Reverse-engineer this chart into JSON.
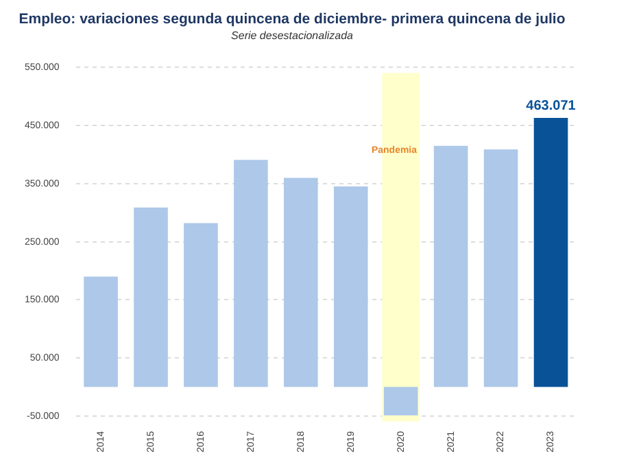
{
  "chart_data": {
    "type": "bar",
    "title": "Empleo: variaciones segunda quincena de diciembre- primera quincena de julio",
    "subtitle": "Serie desestacionalizada",
    "categories": [
      "2014",
      "2015",
      "2016",
      "2017",
      "2018",
      "2019",
      "2020",
      "2021",
      "2022",
      "2023"
    ],
    "values": [
      190000,
      309000,
      282000,
      391000,
      360000,
      345000,
      -49000,
      415000,
      409000,
      463071
    ],
    "colors": [
      "#adc8e8",
      "#adc8e8",
      "#adc8e8",
      "#adc8e8",
      "#adc8e8",
      "#adc8e8",
      "#adc8e8",
      "#adc8e8",
      "#adc8e8",
      "#0a5298"
    ],
    "value_labels": [
      null,
      null,
      null,
      null,
      null,
      null,
      null,
      null,
      null,
      "463.071"
    ],
    "ylim": [
      -50000,
      550000
    ],
    "yticks": [
      {
        "value": -50000,
        "label": "-50.000"
      },
      {
        "value": 50000,
        "label": "50.000"
      },
      {
        "value": 150000,
        "label": "150.000"
      },
      {
        "value": 250000,
        "label": "250.000"
      },
      {
        "value": 350000,
        "label": "350.000"
      },
      {
        "value": 450000,
        "label": "450.000"
      },
      {
        "value": 550000,
        "label": "550.000"
      }
    ],
    "bands": [
      {
        "axis": "x",
        "from": "2020",
        "to": "2020",
        "label": "Pandemia",
        "color": "#ffffcc"
      }
    ],
    "grid": "y",
    "legend": false
  }
}
